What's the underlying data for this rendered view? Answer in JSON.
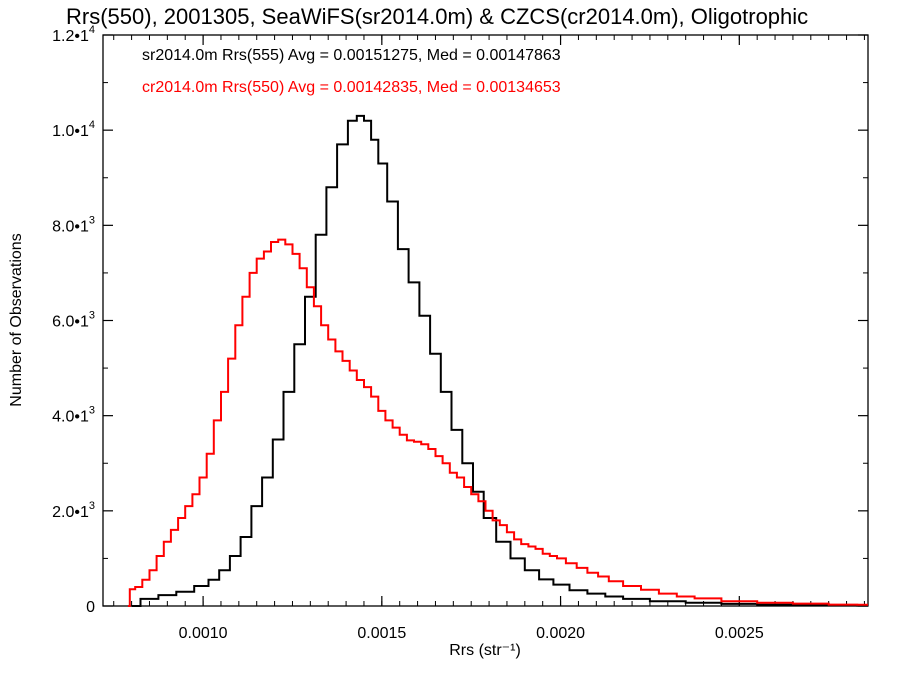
{
  "chart_data": {
    "type": "line",
    "title": "Rrs(550), 2001305, SeaWiFS(sr2014.0m) & CZCS(cr2014.0m), Oligotrophic",
    "xlabel": "Rrs (str⁻¹)",
    "ylabel": "Number of Observations",
    "xlim": [
      0.00072,
      0.00286
    ],
    "ylim": [
      0,
      12000
    ],
    "x_ticks": [
      {
        "value": 0.001,
        "label": "0.0010"
      },
      {
        "value": 0.0015,
        "label": "0.0015"
      },
      {
        "value": 0.002,
        "label": "0.0020"
      },
      {
        "value": 0.0025,
        "label": "0.0025"
      }
    ],
    "y_ticks": [
      {
        "value": 0,
        "mant": "0",
        "exp": ""
      },
      {
        "value": 2000,
        "mant": "2.0•1",
        "exp": "3"
      },
      {
        "value": 4000,
        "mant": "4.0•1",
        "exp": "3"
      },
      {
        "value": 6000,
        "mant": "6.0•1",
        "exp": "3"
      },
      {
        "value": 8000,
        "mant": "8.0•1",
        "exp": "3"
      },
      {
        "value": 10000,
        "mant": "1.0•1",
        "exp": "4"
      },
      {
        "value": 12000,
        "mant": "1.2•1",
        "exp": "4"
      }
    ],
    "grid": false,
    "legend_position": "top-left",
    "series": [
      {
        "name": "sr2014.0m Rrs(555) Avg = 0.00151275, Med = 0.00147863",
        "color": "#000000",
        "points": [
          [
            0.0008,
            0
          ],
          [
            0.00085,
            150
          ],
          [
            0.0009,
            230
          ],
          [
            0.00095,
            300
          ],
          [
            0.001,
            420
          ],
          [
            0.00103,
            550
          ],
          [
            0.00106,
            750
          ],
          [
            0.00109,
            1050
          ],
          [
            0.00112,
            1450
          ],
          [
            0.00115,
            2100
          ],
          [
            0.00118,
            2700
          ],
          [
            0.00121,
            3500
          ],
          [
            0.00124,
            4500
          ],
          [
            0.00127,
            5500
          ],
          [
            0.0013,
            6500
          ],
          [
            0.00133,
            7800
          ],
          [
            0.00136,
            8800
          ],
          [
            0.00139,
            9700
          ],
          [
            0.00142,
            10200
          ],
          [
            0.00144,
            10300
          ],
          [
            0.00146,
            10200
          ],
          [
            0.00148,
            9800
          ],
          [
            0.0015,
            9300
          ],
          [
            0.00153,
            8500
          ],
          [
            0.00156,
            7500
          ],
          [
            0.00159,
            6800
          ],
          [
            0.00162,
            6100
          ],
          [
            0.00165,
            5300
          ],
          [
            0.00168,
            4500
          ],
          [
            0.00171,
            3700
          ],
          [
            0.00174,
            3000
          ],
          [
            0.00177,
            2400
          ],
          [
            0.0018,
            1850
          ],
          [
            0.00184,
            1350
          ],
          [
            0.00188,
            1000
          ],
          [
            0.00192,
            750
          ],
          [
            0.00196,
            560
          ],
          [
            0.002,
            450
          ],
          [
            0.00205,
            330
          ],
          [
            0.0021,
            260
          ],
          [
            0.00215,
            200
          ],
          [
            0.0022,
            150
          ],
          [
            0.0023,
            100
          ],
          [
            0.0024,
            70
          ],
          [
            0.0025,
            45
          ],
          [
            0.0026,
            30
          ],
          [
            0.0027,
            20
          ],
          [
            0.0028,
            10
          ],
          [
            0.00286,
            8
          ]
        ]
      },
      {
        "name": "cr2014.0m Rrs(550) Avg = 0.00142835, Med = 0.00134653",
        "color": "#ff0000",
        "points": [
          [
            0.00079,
            0
          ],
          [
            0.0008,
            350
          ],
          [
            0.00082,
            400
          ],
          [
            0.00084,
            550
          ],
          [
            0.00086,
            750
          ],
          [
            0.00088,
            1050
          ],
          [
            0.0009,
            1350
          ],
          [
            0.00092,
            1600
          ],
          [
            0.00094,
            1850
          ],
          [
            0.00096,
            2100
          ],
          [
            0.00098,
            2350
          ],
          [
            0.001,
            2700
          ],
          [
            0.00102,
            3200
          ],
          [
            0.00104,
            3900
          ],
          [
            0.00106,
            4500
          ],
          [
            0.00108,
            5200
          ],
          [
            0.0011,
            5900
          ],
          [
            0.00112,
            6500
          ],
          [
            0.00114,
            7000
          ],
          [
            0.00116,
            7300
          ],
          [
            0.00118,
            7450
          ],
          [
            0.0012,
            7650
          ],
          [
            0.00122,
            7700
          ],
          [
            0.00124,
            7600
          ],
          [
            0.00126,
            7400
          ],
          [
            0.00128,
            7100
          ],
          [
            0.0013,
            6700
          ],
          [
            0.00132,
            6300
          ],
          [
            0.00134,
            5900
          ],
          [
            0.00136,
            5600
          ],
          [
            0.00138,
            5350
          ],
          [
            0.0014,
            5150
          ],
          [
            0.00142,
            4950
          ],
          [
            0.00144,
            4750
          ],
          [
            0.00146,
            4600
          ],
          [
            0.00148,
            4400
          ],
          [
            0.0015,
            4100
          ],
          [
            0.00152,
            3900
          ],
          [
            0.00154,
            3750
          ],
          [
            0.00156,
            3600
          ],
          [
            0.00158,
            3480
          ],
          [
            0.0016,
            3450
          ],
          [
            0.00162,
            3400
          ],
          [
            0.00164,
            3300
          ],
          [
            0.00166,
            3150
          ],
          [
            0.00168,
            3000
          ],
          [
            0.0017,
            2800
          ],
          [
            0.00172,
            2700
          ],
          [
            0.00174,
            2500
          ],
          [
            0.00176,
            2350
          ],
          [
            0.00178,
            2200
          ],
          [
            0.0018,
            2000
          ],
          [
            0.00182,
            1800
          ],
          [
            0.00184,
            1700
          ],
          [
            0.00186,
            1550
          ],
          [
            0.00188,
            1400
          ],
          [
            0.0019,
            1300
          ],
          [
            0.00192,
            1250
          ],
          [
            0.00194,
            1200
          ],
          [
            0.00196,
            1100
          ],
          [
            0.00198,
            1050
          ],
          [
            0.002,
            1000
          ],
          [
            0.00203,
            900
          ],
          [
            0.00206,
            800
          ],
          [
            0.00209,
            700
          ],
          [
            0.00212,
            620
          ],
          [
            0.00215,
            520
          ],
          [
            0.0022,
            420
          ],
          [
            0.00225,
            340
          ],
          [
            0.0023,
            260
          ],
          [
            0.00235,
            200
          ],
          [
            0.0024,
            160
          ],
          [
            0.0025,
            100
          ],
          [
            0.0026,
            70
          ],
          [
            0.0027,
            50
          ],
          [
            0.0028,
            30
          ],
          [
            0.00286,
            25
          ]
        ]
      }
    ]
  }
}
